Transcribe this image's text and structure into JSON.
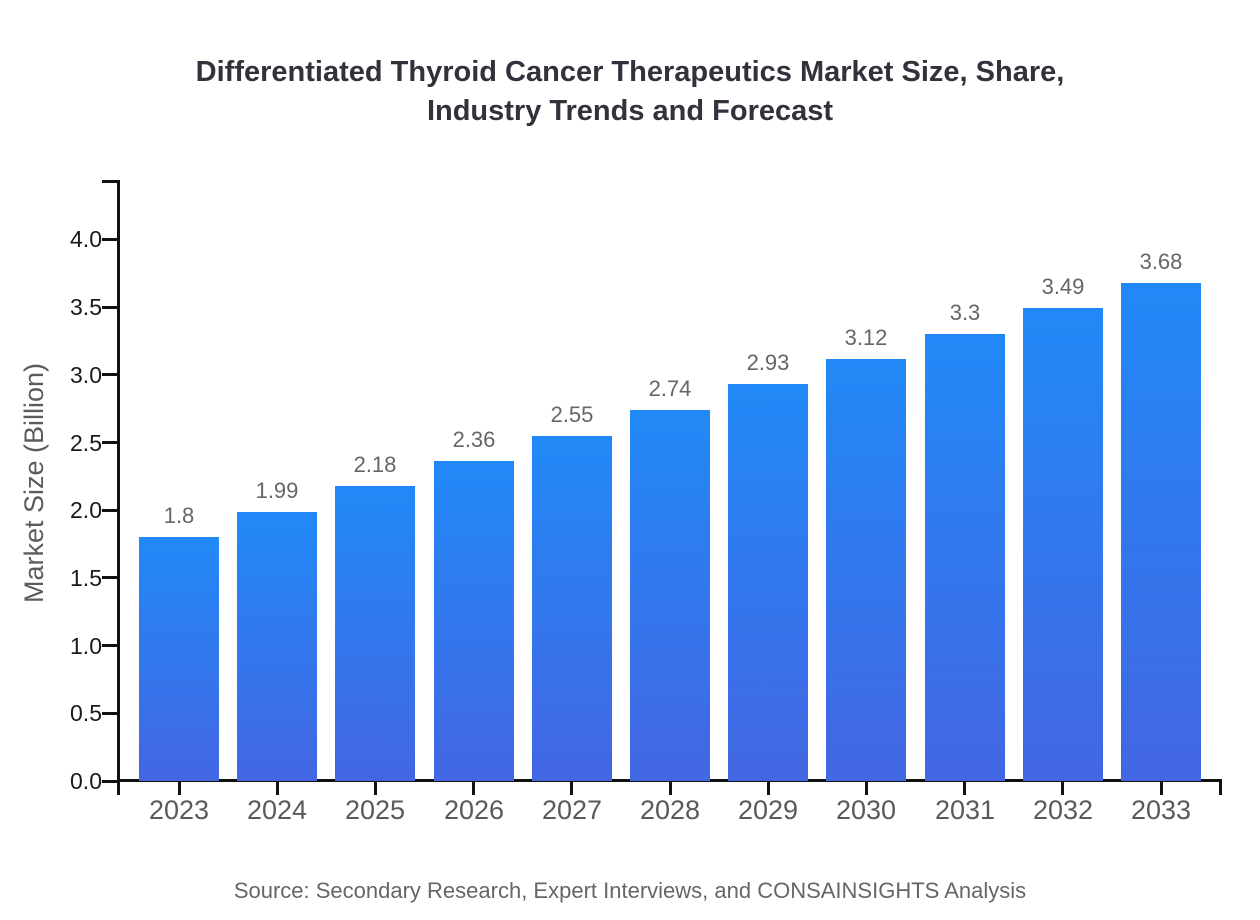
{
  "title": {
    "line1": "Differentiated Thyroid Cancer Therapeutics Market Size, Share,",
    "line2": "Industry Trends and Forecast"
  },
  "source": "Source: Secondary Research, Expert Interviews, and CONSAINSIGHTS Analysis",
  "chart_data": {
    "type": "bar",
    "title": "Differentiated Thyroid Cancer Therapeutics Market Size, Share, Industry Trends and Forecast",
    "categories": [
      "2023",
      "2024",
      "2025",
      "2026",
      "2027",
      "2028",
      "2029",
      "2030",
      "2031",
      "2032",
      "2033"
    ],
    "values": [
      1.8,
      1.99,
      2.18,
      2.36,
      2.55,
      2.74,
      2.93,
      3.12,
      3.3,
      3.49,
      3.68
    ],
    "value_labels": [
      "1.8",
      "1.99",
      "2.18",
      "2.36",
      "2.55",
      "2.74",
      "2.93",
      "3.12",
      "3.3",
      "3.49",
      "3.68"
    ],
    "xlabel": "",
    "ylabel": "Market Size (Billion)",
    "ylim": [
      0,
      4.44
    ],
    "yticks": [
      0.0,
      0.5,
      1.0,
      1.5,
      2.0,
      2.5,
      3.0,
      3.5,
      4.0
    ],
    "ytick_labels": [
      "0.0",
      "0.5",
      "1.0",
      "1.5",
      "2.0",
      "2.5",
      "3.0",
      "3.5",
      "4.0"
    ],
    "grid": false,
    "legend": "none",
    "bar_color_top": "#2189f7",
    "bar_color_bottom": "#4366e2"
  }
}
